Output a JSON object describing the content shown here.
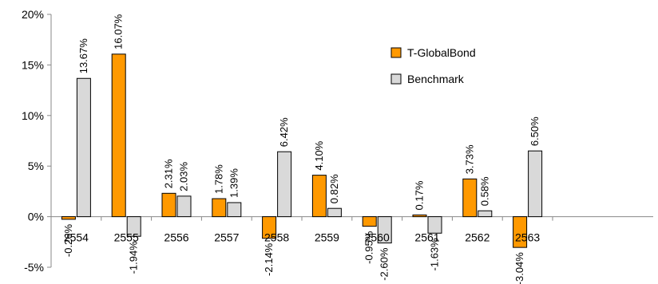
{
  "chart_data": {
    "type": "bar",
    "categories": [
      "2554",
      "2555",
      "2556",
      "2557",
      "2558",
      "2559",
      "2560",
      "2561",
      "2562",
      "2563"
    ],
    "series": [
      {
        "name": "T-GlobalBond",
        "color": "#FF9900",
        "values": [
          -0.26,
          16.07,
          2.31,
          1.78,
          -2.14,
          4.1,
          -0.95,
          0.17,
          3.73,
          -3.04
        ],
        "labels": [
          "-0.26%",
          "16.07%",
          "2.31%",
          "1.78%",
          "-2.14%",
          "4.10%",
          "-0.95%",
          "0.17%",
          "3.73%",
          "-3.04%"
        ]
      },
      {
        "name": "Benchmark",
        "color": "#D9D9D9",
        "values": [
          13.67,
          -1.94,
          2.03,
          1.39,
          6.42,
          0.82,
          -2.6,
          -1.63,
          0.58,
          6.5
        ],
        "labels": [
          "13.67%",
          "-1.94%",
          "2.03%",
          "1.39%",
          "6.42%",
          "0.82%",
          "-2.60%",
          "-1.63%",
          "0.58%",
          "6.50%"
        ]
      }
    ],
    "yticks": [
      {
        "value": 20,
        "label": "20%"
      },
      {
        "value": 15,
        "label": "15%"
      },
      {
        "value": 10,
        "label": "10%"
      },
      {
        "value": 5,
        "label": "5%"
      },
      {
        "value": 0,
        "label": "0%"
      },
      {
        "value": -5,
        "label": "-5%"
      }
    ],
    "ylim": [
      -5,
      20
    ],
    "legend_position": "top-right",
    "grid": false
  }
}
